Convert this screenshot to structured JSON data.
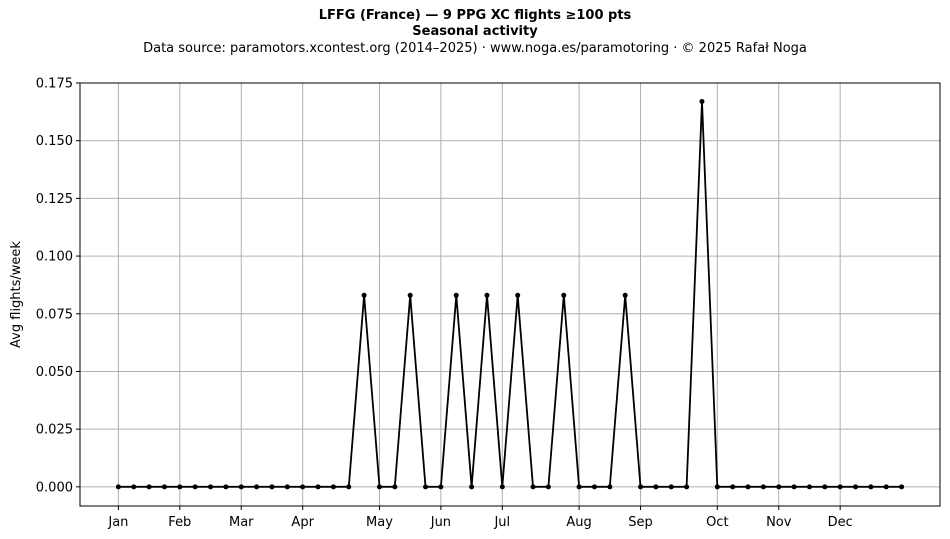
{
  "header": {
    "title": "LFFG (France)  —  9 PPG XC flights ≥100 pts",
    "subtitle": "Seasonal activity",
    "source": "Data source: paramotors.xcontest.org (2014–2025)  ·  www.noga.es/paramotoring  ·  © 2025 Rafał Noga"
  },
  "chart_data": {
    "type": "line",
    "title": "LFFG (France)  —  9 PPG XC flights ≥100 pts",
    "subtitle": "Seasonal activity",
    "xlabel": "",
    "ylabel": "Avg flights/week",
    "x_unit": "week of year",
    "x": [
      1,
      2,
      3,
      4,
      5,
      6,
      7,
      8,
      9,
      10,
      11,
      12,
      13,
      14,
      15,
      16,
      17,
      18,
      19,
      20,
      21,
      22,
      23,
      24,
      25,
      26,
      27,
      28,
      29,
      30,
      31,
      32,
      33,
      34,
      35,
      36,
      37,
      38,
      39,
      40,
      41,
      42,
      43,
      44,
      45,
      46,
      47,
      48,
      49,
      50,
      51,
      52
    ],
    "series": [
      {
        "name": "",
        "color": "#000000",
        "values": [
          0,
          0,
          0,
          0,
          0,
          0,
          0,
          0,
          0,
          0,
          0,
          0,
          0,
          0,
          0,
          0,
          0.083,
          0,
          0,
          0.083,
          0,
          0,
          0.083,
          0,
          0.083,
          0,
          0.083,
          0,
          0,
          0.083,
          0,
          0,
          0,
          0.083,
          0,
          0,
          0,
          0,
          0.167,
          0,
          0,
          0,
          0,
          0,
          0,
          0,
          0,
          0,
          0,
          0,
          0,
          0
        ]
      }
    ],
    "xticks": [
      {
        "label": "Jan",
        "week": 1
      },
      {
        "label": "Feb",
        "week": 5
      },
      {
        "label": "Mar",
        "week": 9
      },
      {
        "label": "Apr",
        "week": 13
      },
      {
        "label": "May",
        "week": 18
      },
      {
        "label": "Jun",
        "week": 22
      },
      {
        "label": "Jul",
        "week": 26
      },
      {
        "label": "Aug",
        "week": 31
      },
      {
        "label": "Sep",
        "week": 35
      },
      {
        "label": "Oct",
        "week": 40
      },
      {
        "label": "Nov",
        "week": 44
      },
      {
        "label": "Dec",
        "week": 48
      }
    ],
    "xlim": [
      -1.5,
      54.5
    ],
    "yticks": [
      "0.000",
      "0.025",
      "0.050",
      "0.075",
      "0.100",
      "0.125",
      "0.150",
      "0.175"
    ],
    "ylim": [
      -0.0083,
      0.175
    ],
    "grid": true,
    "legend": "none"
  }
}
